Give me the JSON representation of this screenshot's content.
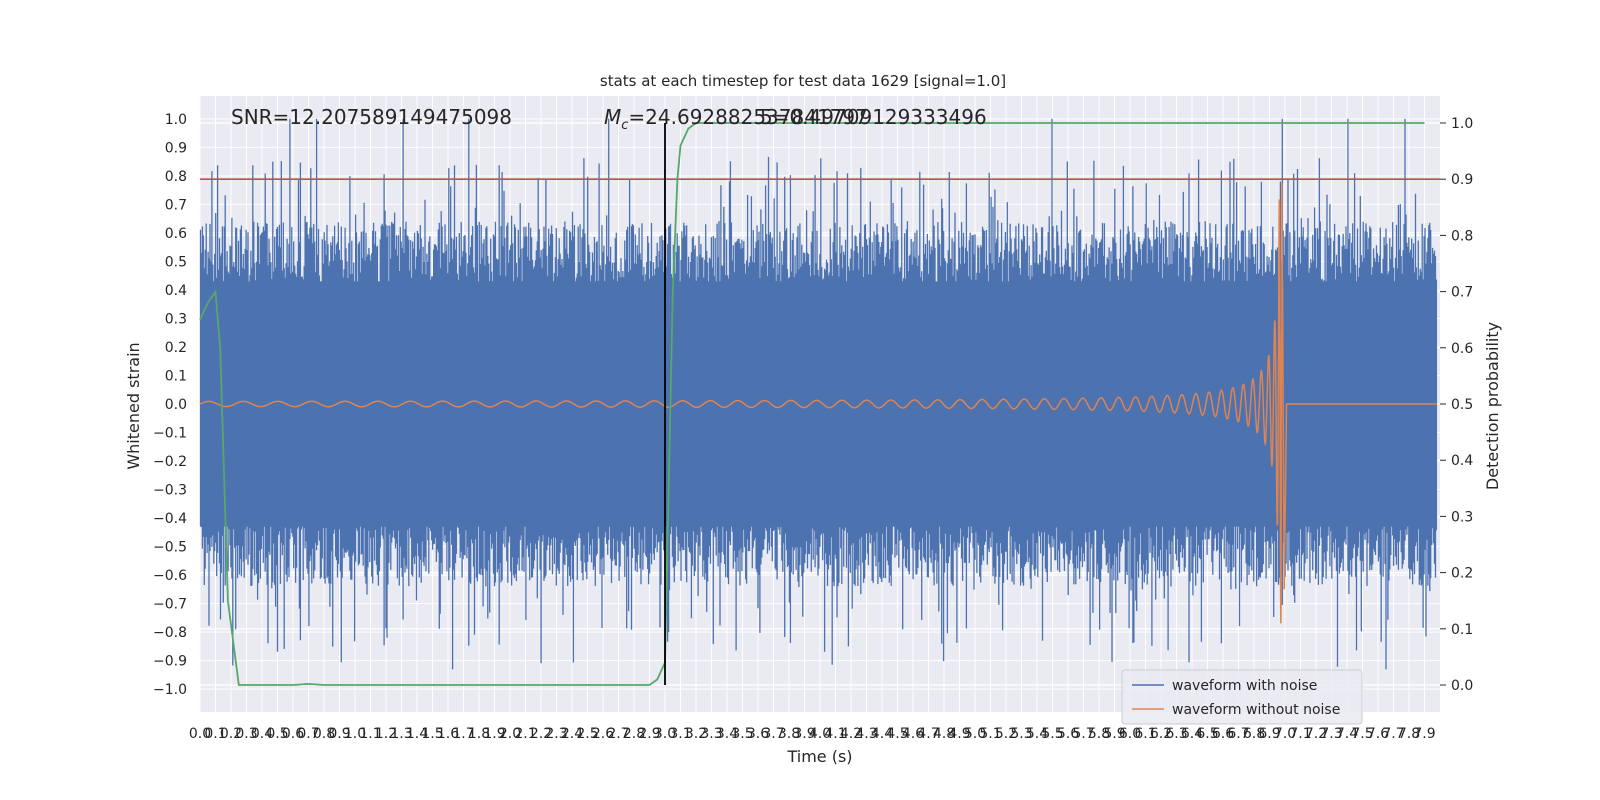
{
  "chart_data": {
    "type": "line",
    "title": "stats at each timestep for test data 1629 [signal=1.0]",
    "xlabel": "Time (s)",
    "ylabel_left": "Whitened strain",
    "ylabel_right": "Detection probability",
    "annotation_snr": "SNR=12.207589149475098",
    "annotation_mc_symbol": "M",
    "annotation_mc_subscript": "c",
    "annotation_mc_value": "=24.692882537841797",
    "annotation_overlap": "5=0.49709129333496",
    "xlim": [
      0.0,
      8.0
    ],
    "ylim_left": [
      -1.08,
      1.08
    ],
    "ylim_right": [
      -0.048,
      1.048
    ],
    "xticks": [
      "0.0",
      "0.1",
      "0.2",
      "0.3",
      "0.4",
      "0.5",
      "0.6",
      "0.7",
      "0.8",
      "0.9",
      "1.0",
      "1.1",
      "1.2",
      "1.3",
      "1.4",
      "1.5",
      "1.6",
      "1.7",
      "1.8",
      "1.9",
      "2.0",
      "2.1",
      "2.2",
      "2.3",
      "2.4",
      "2.5",
      "2.6",
      "2.7",
      "2.8",
      "2.9",
      "3.0",
      "3.1",
      "3.2",
      "3.3",
      "3.4",
      "3.5",
      "3.6",
      "3.7",
      "3.8",
      "3.9",
      "4.0",
      "4.1",
      "4.2",
      "4.3",
      "4.4",
      "4.5",
      "4.6",
      "4.7",
      "4.8",
      "4.9",
      "5.0",
      "5.1",
      "5.2",
      "5.3",
      "5.4",
      "5.5",
      "5.6",
      "5.7",
      "5.8",
      "5.9",
      "6.0",
      "6.1",
      "6.2",
      "6.3",
      "6.4",
      "6.5",
      "6.6",
      "6.7",
      "6.8",
      "6.9",
      "7.0",
      "7.1",
      "7.2",
      "7.3",
      "7.4",
      "7.5",
      "7.6",
      "7.7",
      "7.8",
      "7.9"
    ],
    "yticks_left": [
      "1.0",
      "0.9",
      "0.8",
      "0.7",
      "0.6",
      "0.5",
      "0.4",
      "0.3",
      "0.2",
      "0.1",
      "0.0",
      "−0.1",
      "−0.2",
      "−0.3",
      "−0.4",
      "−0.5",
      "−0.6",
      "−0.7",
      "−0.8",
      "−0.9",
      "−1.0"
    ],
    "yticks_right": [
      "1.0",
      "0.9",
      "0.8",
      "0.7",
      "0.6",
      "0.5",
      "0.4",
      "0.3",
      "0.2",
      "0.1",
      "0.0"
    ],
    "threshold_probability": 0.9,
    "merger_marker_time": 3.0,
    "legend_position": "lower-right",
    "series": [
      {
        "name": "waveform with noise",
        "color": "#4c72b0",
        "kind": "noise",
        "amplitude_envelope": [
          -0.95,
          1.0
        ]
      },
      {
        "name": "waveform without noise",
        "color": "#dd8452",
        "kind": "chirp",
        "merger_time": 6.98,
        "peak_values": [
          0.77,
          -0.65
        ]
      },
      {
        "name": "",
        "color": "#55a868",
        "kind": "probability",
        "x": [
          0.0,
          0.05,
          0.1,
          0.13,
          0.18,
          0.25,
          0.6,
          0.7,
          0.8,
          1.5,
          2.5,
          2.9,
          2.95,
          3.0,
          3.02,
          3.05,
          3.08,
          3.1,
          3.15,
          3.2,
          4.0,
          5.0,
          6.0,
          7.0,
          7.9
        ],
        "y": [
          0.65,
          0.68,
          0.7,
          0.6,
          0.15,
          0.0,
          0.0,
          0.002,
          0.0,
          0.0,
          0.0,
          0.0,
          0.01,
          0.04,
          0.3,
          0.7,
          0.9,
          0.96,
          0.99,
          1.0,
          1.0,
          1.0,
          1.0,
          1.0,
          1.0
        ]
      },
      {
        "name": "",
        "color": "#c44e52",
        "kind": "threshold"
      },
      {
        "name": "",
        "color": "#000000",
        "kind": "marker"
      }
    ]
  }
}
